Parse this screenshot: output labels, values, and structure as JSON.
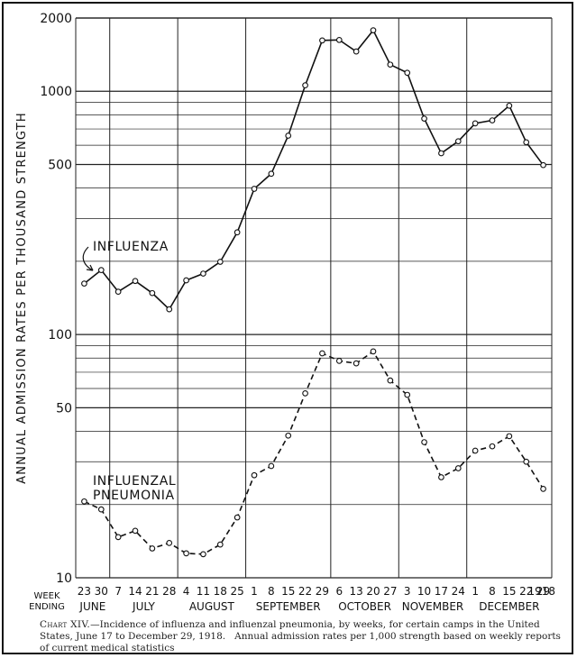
{
  "chart_data": {
    "type": "line",
    "ylabel": "ANNUAL ADMISSION RATES PER THOUSAND STRENGTH",
    "xlabel": "WEEK ENDING",
    "y_scale": "log",
    "ylim": [
      10,
      2000
    ],
    "y_ticks": [
      "10",
      "50",
      "100",
      "500",
      "1000",
      "2000"
    ],
    "grid": true,
    "x_ticks": [
      "23",
      "30",
      "7",
      "14",
      "21",
      "28",
      "4",
      "11",
      "18",
      "25",
      "1",
      "8",
      "15",
      "22",
      "29",
      "6",
      "13",
      "20",
      "27",
      "3",
      "10",
      "17",
      "24",
      "1",
      "8",
      "15",
      "22",
      "29"
    ],
    "months": [
      {
        "label": "JUNE",
        "from": 0,
        "to": 1
      },
      {
        "label": "JULY",
        "from": 2,
        "to": 5
      },
      {
        "label": "AUGUST",
        "from": 6,
        "to": 9
      },
      {
        "label": "SEPTEMBER",
        "from": 10,
        "to": 14
      },
      {
        "label": "OCTOBER",
        "from": 15,
        "to": 18
      },
      {
        "label": "NOVEMBER",
        "from": 19,
        "to": 22
      },
      {
        "label": "DECEMBER",
        "from": 23,
        "to": 27
      }
    ],
    "year_label": "1918",
    "series": [
      {
        "name": "INFLUENZA",
        "style": "solid",
        "values": [
          162,
          184,
          150,
          166,
          148,
          127,
          167,
          178,
          199,
          263,
          397,
          458,
          657,
          1058,
          1618,
          1625,
          1457,
          1781,
          1287,
          1191,
          772,
          556,
          623,
          738,
          759,
          872,
          617,
          497
        ]
      },
      {
        "name": "INFLUENZAL\nPNEUMONIA",
        "style": "dashed",
        "values": [
          20.6,
          19.1,
          14.7,
          15.6,
          13.2,
          13.9,
          12.6,
          12.5,
          13.7,
          17.7,
          26.4,
          28.8,
          38.4,
          57.3,
          83.7,
          77.9,
          76.1,
          85.2,
          64.7,
          56.5,
          36.1,
          25.9,
          28.2,
          33.3,
          34.7,
          38.2,
          30.0,
          23.2
        ]
      }
    ]
  },
  "labels": {
    "week_ending": [
      "WEEK",
      "ENDING"
    ],
    "year": "1918"
  },
  "caption": {
    "lead": "Chart XIV.",
    "text": "—Incidence of influenza and influenzal pneumonia, by weeks, for certain camps in the United States, June 17 to December 29, 1918.   Annual admission rates per 1,000 strength based on weekly reports of current medical statistics"
  }
}
